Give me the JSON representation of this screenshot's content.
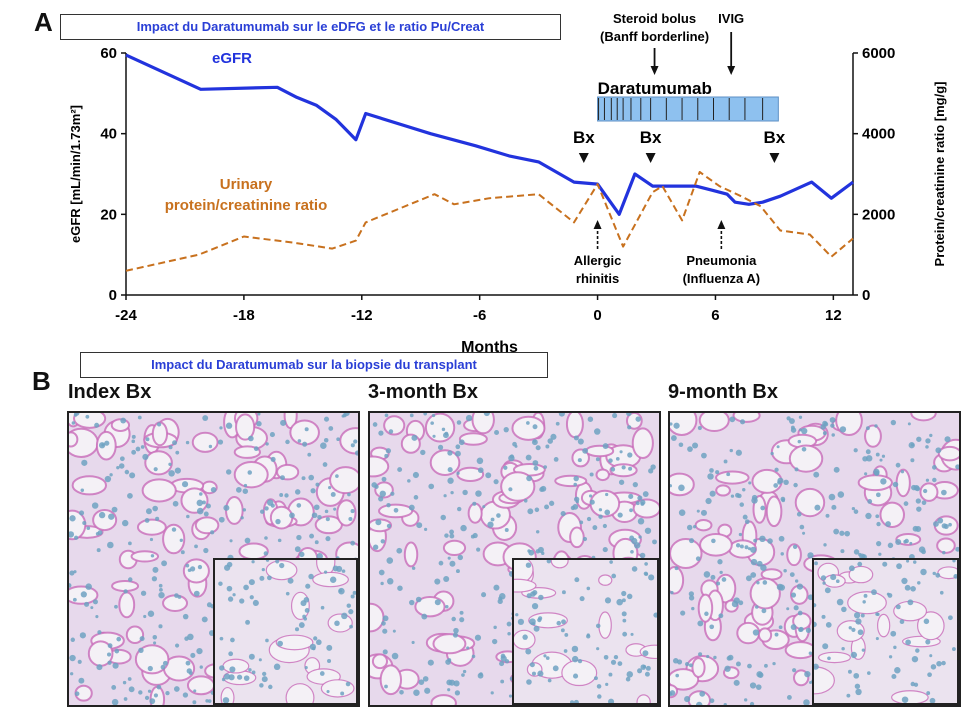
{
  "panel_a": {
    "letter": "A",
    "banner": "Impact du Daratumumab sur le eDFG et le ratio Pu/Creat"
  },
  "panel_b": {
    "letter": "B",
    "banner": "Impact du Daratumumab sur la biopsie du transplant",
    "biopsies": [
      {
        "title": "Index Bx"
      },
      {
        "title": "3-month Bx"
      },
      {
        "title": "9-month Bx"
      }
    ],
    "colors": {
      "tissue_bg": "#e7d9ec",
      "stain_pink": "#c86bb9",
      "nuclei": "#6fa2c2",
      "lumen": "#f4f1f6"
    }
  },
  "chart_data": {
    "type": "line",
    "xlabel": "Months",
    "ylabel_left": "eGFR [mL/min/1.73m²]",
    "ylabel_right": "Protein/creatinine ratio [mg/g]",
    "xlim": [
      -24,
      13
    ],
    "xticks": [
      "-24",
      "-18",
      "-12",
      "-6",
      "0",
      "6",
      "12"
    ],
    "xtick_values": [
      -24,
      -18,
      -12,
      -6,
      0,
      6,
      12
    ],
    "ylim_left": [
      0,
      60
    ],
    "yticks_left": [
      "0",
      "20",
      "40",
      "60"
    ],
    "ytick_values_left": [
      0,
      20,
      40,
      60
    ],
    "ylim_right": [
      0,
      6000
    ],
    "yticks_right": [
      "0",
      "2000",
      "4000",
      "6000"
    ],
    "ytick_values_right": [
      0,
      2000,
      4000,
      6000
    ],
    "series": [
      {
        "name": "eGFR",
        "axis": "left",
        "color": "#2233dd",
        "style": "solid",
        "label_lines": [
          "eGFR"
        ],
        "x": [
          -24,
          -20.2,
          -16.3,
          -15.3,
          -14.3,
          -13.3,
          -12.3,
          -11.8,
          -8.5,
          -6.2,
          -4.5,
          -3,
          -1.2,
          0,
          1.1,
          1.9,
          2.8,
          4,
          5,
          5.8,
          6.6,
          7,
          7.7,
          8.4,
          9.3,
          10.9,
          11.9,
          13
        ],
        "y": [
          59.5,
          51,
          51.5,
          49,
          47,
          43.5,
          38.5,
          45,
          40,
          37,
          34.5,
          33,
          28,
          27.5,
          20,
          30,
          27,
          27,
          27,
          26,
          25,
          23,
          22.5,
          23,
          24.5,
          28,
          24,
          28
        ]
      },
      {
        "name": "Urinary protein/creatinine ratio",
        "axis": "right",
        "color": "#c8711e",
        "style": "dashed",
        "label_lines": [
          "Urinary",
          "protein/creatinine ratio"
        ],
        "x": [
          -24,
          -20.3,
          -18,
          -15.5,
          -13.5,
          -12.3,
          -11.8,
          -8.3,
          -7.3,
          -5.5,
          -3,
          -1.2,
          0,
          1.3,
          2.8,
          3.3,
          4.3,
          5.2,
          6.2,
          7.3,
          8.3,
          9.3,
          10.8,
          11.9,
          13
        ],
        "y": [
          600,
          1000,
          1450,
          1300,
          1150,
          1350,
          1800,
          2500,
          2250,
          2400,
          2500,
          1800,
          2750,
          1200,
          2550,
          2700,
          1850,
          3050,
          2700,
          2450,
          2200,
          1600,
          1500,
          950,
          1400
        ]
      }
    ],
    "annotations": {
      "daratumumab": {
        "label": "Daratumumab",
        "start": 0,
        "end": 9.2,
        "dose_months": [
          0.05,
          0.35,
          0.7,
          1.0,
          1.3,
          1.7,
          2.2,
          2.7,
          3.5,
          4.3,
          5.1,
          5.9,
          6.7,
          7.5,
          8.4
        ]
      },
      "biopsies": [
        {
          "label": "Bx",
          "x": -0.7
        },
        {
          "label": "Bx",
          "x": 2.7
        },
        {
          "label": "Bx",
          "x": 9
        }
      ],
      "down_events": [
        {
          "lines": [
            "Steroid bolus",
            "(Banff borderline)"
          ],
          "x": 2.9
        },
        {
          "lines": [
            "IVIG"
          ],
          "x": 6.8
        }
      ],
      "up_events": [
        {
          "lines": [
            "Allergic",
            "rhinitis"
          ],
          "x": 0
        },
        {
          "lines": [
            "Pneumonia",
            "(Influenza A)"
          ],
          "x": 6.3
        }
      ]
    }
  }
}
